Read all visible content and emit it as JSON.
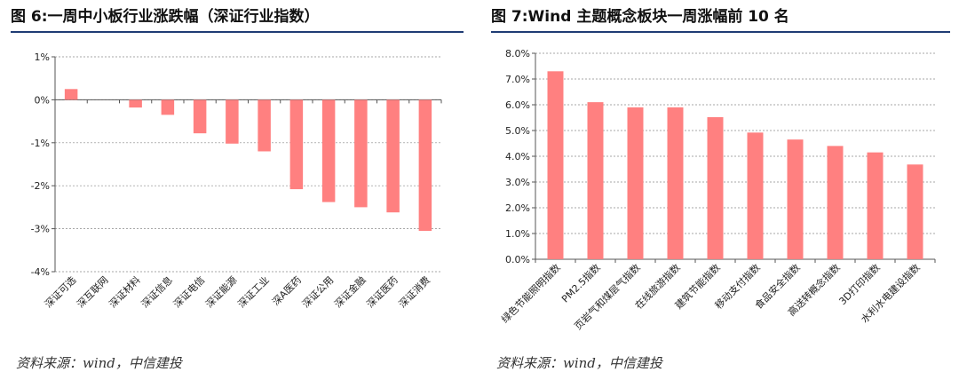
{
  "panels": [
    {
      "title": "图 6:一周中小板行业涨跌幅（深证行业指数）",
      "source": "资料来源：wind，中信建投"
    },
    {
      "title": "图 7:Wind 主题概念板块一周涨幅前 10 名",
      "source": "资料来源：wind，中信建投"
    }
  ],
  "chart_data": [
    {
      "type": "bar",
      "title": "图 6:一周中小板行业涨跌幅（深证行业指数）",
      "categories": [
        "深证可选",
        "深互联网",
        "深证材料",
        "深证信息",
        "深证电信",
        "深证能源",
        "深证工业",
        "深A医药",
        "深证公用",
        "深证金融",
        "深证医药",
        "深证消费"
      ],
      "values": [
        0.25,
        0.0,
        -0.18,
        -0.35,
        -0.78,
        -1.02,
        -1.2,
        -2.08,
        -2.38,
        -2.5,
        -2.62,
        -3.05
      ],
      "ylim": [
        -4,
        1
      ],
      "yticks": [
        1,
        0,
        -1,
        -2,
        -3,
        -4
      ],
      "ytick_labels": [
        "1%",
        "0%",
        "-1%",
        "-2%",
        "-3%",
        "-4%"
      ],
      "grid": true,
      "bar_color": "#ff8080"
    },
    {
      "type": "bar",
      "title": "图 7:Wind 主题概念板块一周涨幅前 10 名",
      "categories": [
        "绿色节能照明指数",
        "PM2.5指数",
        "页岩气和煤层气指数",
        "在线旅游指数",
        "建筑节能指数",
        "移动支付指数",
        "食品安全指数",
        "高送转概念指数",
        "3D打印指数",
        "水利水电建设指数"
      ],
      "values": [
        7.3,
        6.1,
        5.9,
        5.9,
        5.52,
        4.92,
        4.65,
        4.4,
        4.15,
        3.68
      ],
      "ylim": [
        0,
        8
      ],
      "yticks": [
        8,
        7,
        6,
        5,
        4,
        3,
        2,
        1,
        0
      ],
      "ytick_labels": [
        "8.0%",
        "7.0%",
        "6.0%",
        "5.0%",
        "4.0%",
        "3.0%",
        "2.0%",
        "1.0%",
        "0.0%"
      ],
      "grid": true,
      "bar_color": "#ff8080"
    }
  ]
}
